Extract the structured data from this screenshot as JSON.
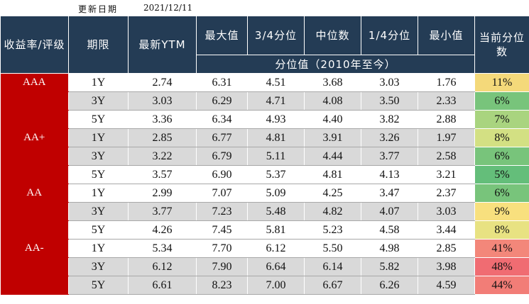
{
  "update": {
    "label": "更新日期",
    "date": "2021/12/11"
  },
  "headers": {
    "grade": "收益率/评级",
    "term": "期限",
    "ytm": "最新YTM",
    "max": "最大值",
    "q3": "3/4分位",
    "median": "中位数",
    "q1": "1/4分位",
    "min": "最小值",
    "current_pct": "当前分位数",
    "percentile_group": "分位值（2010年至今）"
  },
  "rows": [
    {
      "grade": "AAA",
      "term": "1Y",
      "ytm": "2.74",
      "max": "6.31",
      "q3": "4.51",
      "median": "3.68",
      "q1": "3.03",
      "min": "1.76",
      "pct": "11%",
      "pct_color": "#f4d97a"
    },
    {
      "grade": "",
      "term": "3Y",
      "ytm": "3.03",
      "max": "6.29",
      "q3": "4.71",
      "median": "4.08",
      "q1": "3.50",
      "min": "2.33",
      "pct": "6%",
      "pct_color": "#78c47b"
    },
    {
      "grade": "",
      "term": "5Y",
      "ytm": "3.36",
      "max": "6.34",
      "q3": "4.93",
      "median": "4.40",
      "q1": "3.82",
      "min": "2.88",
      "pct": "7%",
      "pct_color": "#a9d47f"
    },
    {
      "grade": "AA+",
      "term": "1Y",
      "ytm": "2.85",
      "max": "6.77",
      "q3": "4.81",
      "median": "3.91",
      "q1": "3.26",
      "min": "1.97",
      "pct": "8%",
      "pct_color": "#d3e083"
    },
    {
      "grade": "",
      "term": "3Y",
      "ytm": "3.22",
      "max": "6.79",
      "q3": "5.11",
      "median": "4.44",
      "q1": "3.77",
      "min": "2.58",
      "pct": "6%",
      "pct_color": "#78c47b"
    },
    {
      "grade": "",
      "term": "5Y",
      "ytm": "3.57",
      "max": "6.90",
      "q3": "5.37",
      "median": "4.81",
      "q1": "4.13",
      "min": "3.21",
      "pct": "5%",
      "pct_color": "#64be7a"
    },
    {
      "grade": "AA",
      "term": "1Y",
      "ytm": "2.99",
      "max": "7.07",
      "q3": "5.09",
      "median": "4.25",
      "q1": "3.47",
      "min": "2.37",
      "pct": "6%",
      "pct_color": "#78c47b"
    },
    {
      "grade": "",
      "term": "3Y",
      "ytm": "3.77",
      "max": "7.23",
      "q3": "5.48",
      "median": "4.82",
      "q1": "4.07",
      "min": "3.03",
      "pct": "9%",
      "pct_color": "#f8e07e"
    },
    {
      "grade": "",
      "term": "5Y",
      "ytm": "4.26",
      "max": "7.45",
      "q3": "5.81",
      "median": "5.23",
      "q1": "4.58",
      "min": "3.44",
      "pct": "8%",
      "pct_color": "#e8e282"
    },
    {
      "grade": "AA-",
      "term": "1Y",
      "ytm": "5.34",
      "max": "7.70",
      "q3": "6.12",
      "median": "5.50",
      "q1": "4.98",
      "min": "2.85",
      "pct": "41%",
      "pct_color": "#f3877a"
    },
    {
      "grade": "",
      "term": "3Y",
      "ytm": "6.12",
      "max": "7.90",
      "q3": "6.64",
      "median": "6.14",
      "q1": "5.82",
      "min": "3.98",
      "pct": "48%",
      "pct_color": "#f06c72"
    },
    {
      "grade": "",
      "term": "5Y",
      "ytm": "6.61",
      "max": "8.23",
      "q3": "7.00",
      "median": "6.67",
      "q1": "6.26",
      "min": "4.59",
      "pct": "44%",
      "pct_color": "#f27d77"
    }
  ]
}
